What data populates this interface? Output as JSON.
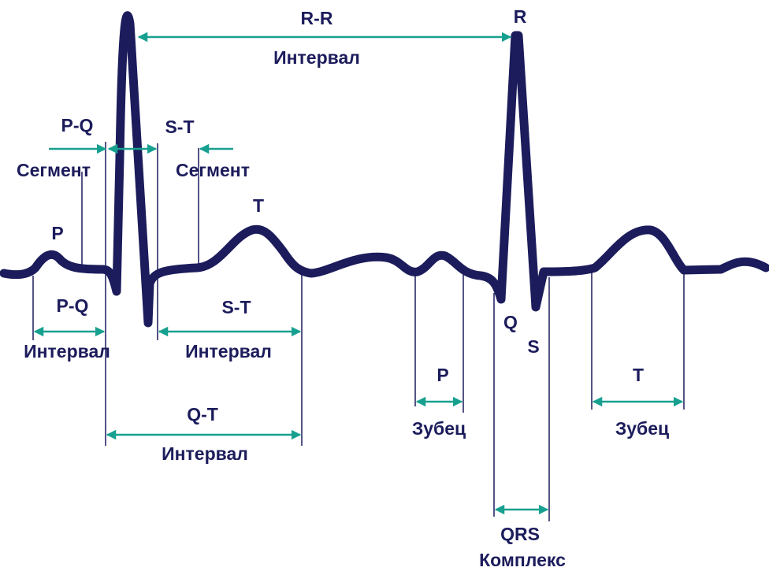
{
  "peaks": [
    "P",
    "T",
    "R",
    "Q",
    "S"
  ],
  "measures": [
    {
      "name": "R-R",
      "kind": "Интервал"
    },
    {
      "name": "P-Q",
      "kind": "Сегмент"
    },
    {
      "name": "S-T",
      "kind": "Сегмент"
    },
    {
      "name": "P-Q",
      "kind": "Интервал"
    },
    {
      "name": "S-T",
      "kind": "Интервал"
    },
    {
      "name": "Q-T",
      "kind": "Интервал"
    },
    {
      "name": "P",
      "kind": "Зубец"
    },
    {
      "name": "T",
      "kind": "Зубец"
    },
    {
      "name": "QRS",
      "kind": "Комплекс"
    }
  ]
}
